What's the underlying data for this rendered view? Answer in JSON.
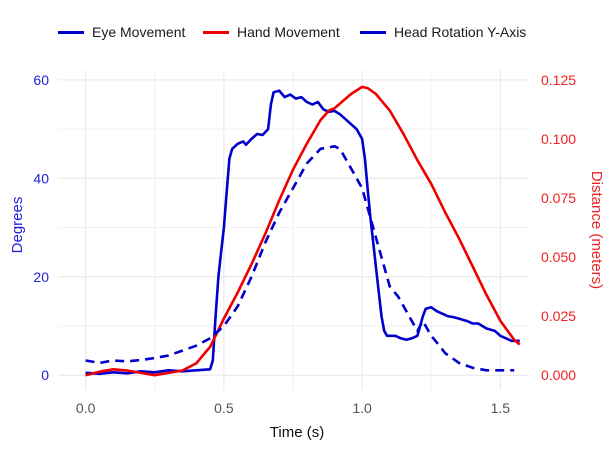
{
  "chart_data": {
    "type": "line",
    "xlabel": "Time (s)",
    "ylabel_left": "Degrees",
    "ylabel_right": "Distance (meters)",
    "xlim": [
      -0.1,
      1.6
    ],
    "ylim_left": [
      -3,
      62
    ],
    "ylim_right": [
      -0.00625,
      0.12917
    ],
    "x_ticks": [
      "0.0",
      "0.5",
      "1.0",
      "1.5"
    ],
    "y_left_ticks": [
      "0",
      "20",
      "40",
      "60"
    ],
    "y_right_ticks": [
      "0.000",
      "0.025",
      "0.050",
      "0.075",
      "0.100",
      "0.125"
    ],
    "grid": true,
    "legend_position": "top",
    "colors": {
      "left_axis": "#2222dd",
      "right_axis": "#ee2222"
    },
    "series": [
      {
        "name": "Eye Movement",
        "axis": "left",
        "color": "#0000cc",
        "dash": "solid",
        "points": [
          [
            0.0,
            0.5
          ],
          [
            0.05,
            0.3
          ],
          [
            0.1,
            0.6
          ],
          [
            0.15,
            0.4
          ],
          [
            0.2,
            0.8
          ],
          [
            0.25,
            0.6
          ],
          [
            0.3,
            1.0
          ],
          [
            0.35,
            0.8
          ],
          [
            0.4,
            1.0
          ],
          [
            0.45,
            1.2
          ],
          [
            0.46,
            3
          ],
          [
            0.47,
            12
          ],
          [
            0.48,
            20
          ],
          [
            0.49,
            25
          ],
          [
            0.5,
            30
          ],
          [
            0.51,
            37
          ],
          [
            0.52,
            44
          ],
          [
            0.53,
            46
          ],
          [
            0.55,
            47
          ],
          [
            0.57,
            47.5
          ],
          [
            0.58,
            46.8
          ],
          [
            0.6,
            48
          ],
          [
            0.62,
            49
          ],
          [
            0.64,
            48.8
          ],
          [
            0.66,
            50
          ],
          [
            0.67,
            55
          ],
          [
            0.68,
            57.5
          ],
          [
            0.7,
            57.8
          ],
          [
            0.72,
            56.5
          ],
          [
            0.74,
            57
          ],
          [
            0.76,
            56.2
          ],
          [
            0.78,
            56.5
          ],
          [
            0.8,
            55.5
          ],
          [
            0.82,
            55
          ],
          [
            0.84,
            55.5
          ],
          [
            0.86,
            54
          ],
          [
            0.88,
            53.5
          ],
          [
            0.9,
            53.7
          ],
          [
            0.92,
            53
          ],
          [
            0.94,
            52
          ],
          [
            0.96,
            51
          ],
          [
            0.98,
            50
          ],
          [
            1.0,
            48
          ],
          [
            1.01,
            44
          ],
          [
            1.02,
            38
          ],
          [
            1.03,
            32
          ],
          [
            1.04,
            27
          ],
          [
            1.05,
            22
          ],
          [
            1.06,
            17
          ],
          [
            1.07,
            12
          ],
          [
            1.08,
            9
          ],
          [
            1.09,
            8
          ],
          [
            1.12,
            8
          ],
          [
            1.14,
            7.5
          ],
          [
            1.16,
            7.2
          ],
          [
            1.18,
            7.5
          ],
          [
            1.2,
            8
          ],
          [
            1.22,
            12
          ],
          [
            1.23,
            13.5
          ],
          [
            1.25,
            13.8
          ],
          [
            1.27,
            13
          ],
          [
            1.29,
            12.5
          ],
          [
            1.31,
            12
          ],
          [
            1.33,
            11.8
          ],
          [
            1.35,
            11.5
          ],
          [
            1.38,
            11
          ],
          [
            1.4,
            10.5
          ],
          [
            1.42,
            10.5
          ],
          [
            1.45,
            9.5
          ],
          [
            1.48,
            9
          ],
          [
            1.5,
            8
          ],
          [
            1.52,
            7.5
          ],
          [
            1.54,
            7
          ],
          [
            1.57,
            7
          ]
        ]
      },
      {
        "name": "Hand Movement",
        "axis": "right",
        "color": "#ee0000",
        "dash": "solid",
        "points": [
          [
            0.0,
            0.0
          ],
          [
            0.05,
            0.0015
          ],
          [
            0.1,
            0.0025
          ],
          [
            0.15,
            0.002
          ],
          [
            0.2,
            0.001
          ],
          [
            0.25,
            0.0
          ],
          [
            0.3,
            0.001
          ],
          [
            0.35,
            0.002
          ],
          [
            0.4,
            0.005
          ],
          [
            0.45,
            0.012
          ],
          [
            0.5,
            0.024
          ],
          [
            0.55,
            0.035
          ],
          [
            0.6,
            0.047
          ],
          [
            0.65,
            0.06
          ],
          [
            0.7,
            0.074
          ],
          [
            0.75,
            0.087
          ],
          [
            0.8,
            0.098
          ],
          [
            0.85,
            0.108
          ],
          [
            0.88,
            0.112
          ],
          [
            0.9,
            0.113
          ],
          [
            0.93,
            0.116
          ],
          [
            0.96,
            0.119
          ],
          [
            1.0,
            0.122
          ],
          [
            1.02,
            0.1215
          ],
          [
            1.05,
            0.119
          ],
          [
            1.1,
            0.112
          ],
          [
            1.15,
            0.102
          ],
          [
            1.2,
            0.091
          ],
          [
            1.25,
            0.081
          ],
          [
            1.3,
            0.069
          ],
          [
            1.35,
            0.058
          ],
          [
            1.4,
            0.046
          ],
          [
            1.45,
            0.034
          ],
          [
            1.5,
            0.023
          ],
          [
            1.55,
            0.015
          ],
          [
            1.57,
            0.013
          ]
        ]
      },
      {
        "name": "Head Rotation Y-Axis",
        "axis": "left",
        "color": "#0000cc",
        "dash": "dashed",
        "points": [
          [
            0.0,
            3
          ],
          [
            0.05,
            2.5
          ],
          [
            0.1,
            3
          ],
          [
            0.15,
            2.8
          ],
          [
            0.2,
            3.1
          ],
          [
            0.25,
            3.5
          ],
          [
            0.3,
            4
          ],
          [
            0.35,
            5
          ],
          [
            0.4,
            6
          ],
          [
            0.45,
            7.5
          ],
          [
            0.5,
            10
          ],
          [
            0.55,
            14
          ],
          [
            0.6,
            20
          ],
          [
            0.65,
            27
          ],
          [
            0.7,
            33
          ],
          [
            0.75,
            38
          ],
          [
            0.8,
            43
          ],
          [
            0.85,
            46
          ],
          [
            0.9,
            46.5
          ],
          [
            0.92,
            46
          ],
          [
            0.95,
            43
          ],
          [
            1.0,
            38
          ],
          [
            1.03,
            32
          ],
          [
            1.05,
            28
          ],
          [
            1.08,
            22
          ],
          [
            1.1,
            18
          ],
          [
            1.13,
            16
          ],
          [
            1.15,
            14
          ],
          [
            1.18,
            11
          ],
          [
            1.2,
            9
          ],
          [
            1.22,
            11
          ],
          [
            1.25,
            8
          ],
          [
            1.28,
            6
          ],
          [
            1.3,
            4.5
          ],
          [
            1.35,
            2.5
          ],
          [
            1.4,
            1.5
          ],
          [
            1.45,
            1
          ],
          [
            1.5,
            1
          ],
          [
            1.55,
            1
          ]
        ]
      }
    ]
  }
}
